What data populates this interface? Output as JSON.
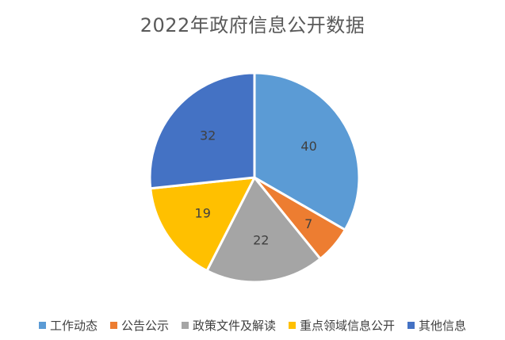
{
  "chart_data": {
    "type": "pie",
    "title": "2022年政府信息公开数据",
    "categories": [
      "工作动态",
      "公告公示",
      "政策文件及解读",
      "重点领域信息公开",
      "其他信息"
    ],
    "values": [
      40,
      7,
      22,
      19,
      32
    ],
    "colors": [
      "#5B9BD5",
      "#ED7D31",
      "#A5A5A5",
      "#FFC000",
      "#4472C4"
    ],
    "data_labels": [
      "40",
      "7",
      "22",
      "19",
      "32"
    ],
    "legend_position": "bottom",
    "start_angle": "12 o'clock",
    "direction": "clockwise"
  }
}
